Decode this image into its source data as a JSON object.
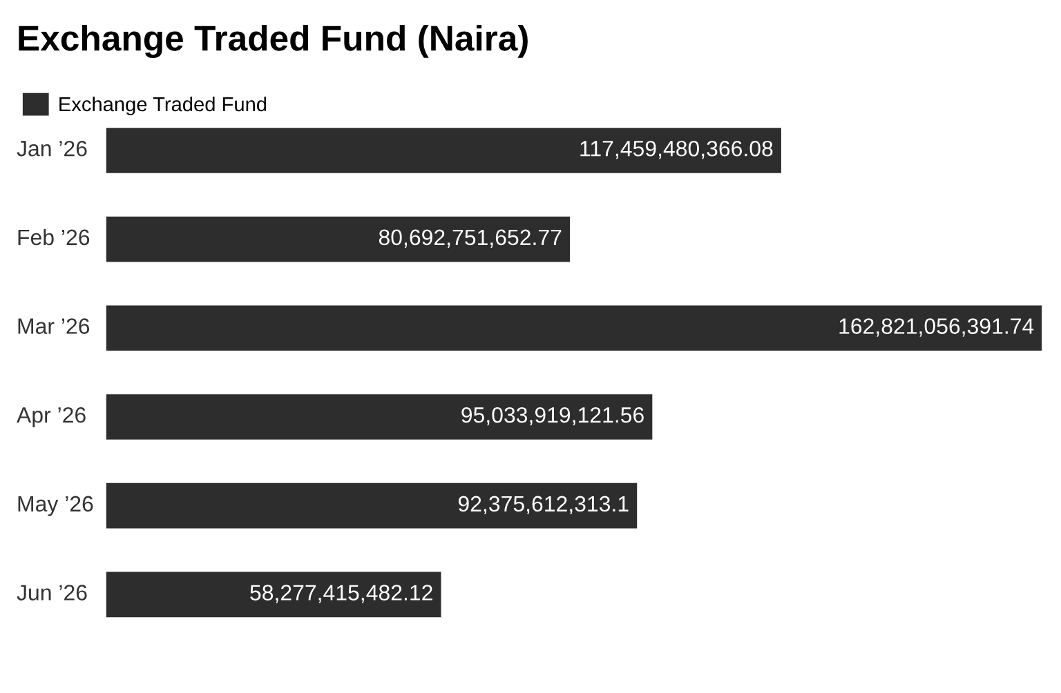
{
  "chart_data": {
    "type": "bar",
    "orientation": "horizontal",
    "title": "Exchange Traded Fund (Naira)",
    "categories": [
      "Jan ’26",
      "Feb ’26",
      "Mar ’26",
      "Apr ’26",
      "May ’26",
      "Jun ’26"
    ],
    "series": [
      {
        "name": "Exchange Traded Fund",
        "color": "#2d2d2d",
        "values": [
          117459480366.08,
          80692751652.77,
          162821056391.74,
          95033919121.56,
          92375612313.1,
          58277415482.12
        ],
        "value_labels": [
          "117,459,480,366.08",
          "80,692,751,652.77",
          "162,821,056,391.74",
          "95,033,919,121.56",
          "92,375,612,313.1",
          "58,277,415,482.12"
        ]
      }
    ],
    "legend": "top left"
  }
}
